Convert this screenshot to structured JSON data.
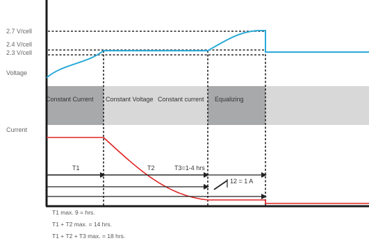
{
  "voltage_levels": [
    "2.7 V/cell",
    "2.4 V/cell",
    "2.3 V/cell"
  ],
  "axis_labels": {
    "voltage": "Voltage",
    "current": "Current"
  },
  "phases": [
    "Constant Current",
    "Constant Voltage",
    "Constant current",
    "Equalizing"
  ],
  "intervals": {
    "t1": "T1",
    "t2": "T2",
    "t3": "T3=1-4 hrs",
    "current_step": "12 = 1 A"
  },
  "notes": [
    "T1 max. 9 = hrs.",
    "T1 + T2 max. = 14 hrs.",
    "T1 + T2 + T3 max.  = 18 hrs."
  ],
  "colors": {
    "voltage_curve": "#2aa9d8",
    "current_curve": "#e02020",
    "phase_dark": "#a8a9ab",
    "phase_light": "#d8d8d8",
    "axis": "#1a1a1a"
  }
}
